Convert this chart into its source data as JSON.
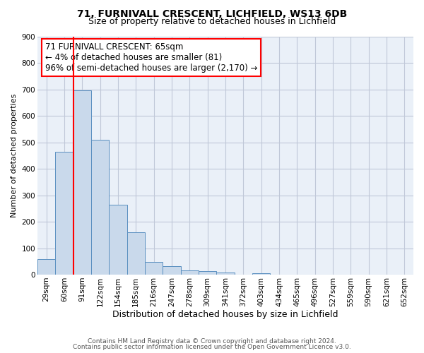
{
  "title_line1": "71, FURNIVALL CRESCENT, LICHFIELD, WS13 6DB",
  "title_line2": "Size of property relative to detached houses in Lichfield",
  "xlabel": "Distribution of detached houses by size in Lichfield",
  "ylabel": "Number of detached properties",
  "bar_labels": [
    "29sqm",
    "60sqm",
    "91sqm",
    "122sqm",
    "154sqm",
    "185sqm",
    "216sqm",
    "247sqm",
    "278sqm",
    "309sqm",
    "341sqm",
    "372sqm",
    "403sqm",
    "434sqm",
    "465sqm",
    "496sqm",
    "527sqm",
    "559sqm",
    "590sqm",
    "621sqm",
    "652sqm"
  ],
  "bar_values": [
    60,
    465,
    695,
    510,
    265,
    160,
    47,
    33,
    17,
    13,
    8,
    0,
    5,
    0,
    0,
    0,
    0,
    0,
    0,
    0,
    0
  ],
  "bar_color": "#c9d9eb",
  "bar_edgecolor": "#5a8fc0",
  "ylim": [
    0,
    900
  ],
  "yticks": [
    0,
    100,
    200,
    300,
    400,
    500,
    600,
    700,
    800,
    900
  ],
  "annotation_line1": "71 FURNIVALL CRESCENT: 65sqm",
  "annotation_line2": "← 4% of detached houses are smaller (81)",
  "annotation_line3": "96% of semi-detached houses are larger (2,170) →",
  "grid_color": "#c0c8d8",
  "background_color": "#eaf0f8",
  "footer_line1": "Contains HM Land Registry data © Crown copyright and database right 2024.",
  "footer_line2": "Contains public sector information licensed under the Open Government Licence v3.0.",
  "title_fontsize": 10,
  "subtitle_fontsize": 9,
  "ylabel_fontsize": 8,
  "xlabel_fontsize": 9,
  "tick_fontsize": 7.5,
  "footer_fontsize": 6.5,
  "annot_fontsize": 8.5
}
